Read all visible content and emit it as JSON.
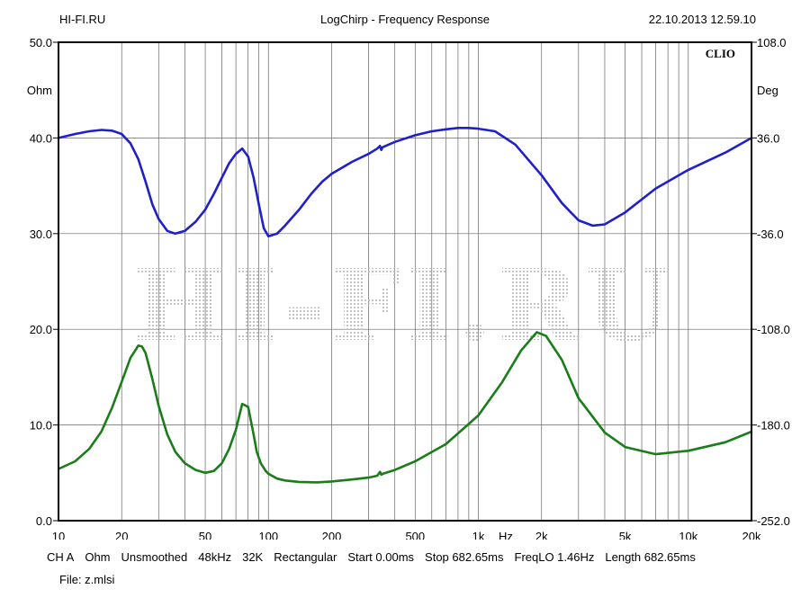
{
  "header": {
    "left": "HI-FI.RU",
    "center": "LogChirp - Frequency Response",
    "right": "22.10.2013 12.59.10"
  },
  "watermark": "HI-FI.RU",
  "brand": "CLIO",
  "footer": {
    "settings": [
      {
        "id": "channel",
        "text": "CH A"
      },
      {
        "id": "unit",
        "text": "Ohm"
      },
      {
        "id": "smoothing",
        "text": "Unsmoothed"
      },
      {
        "id": "sample-rate",
        "text": "48kHz"
      },
      {
        "id": "size",
        "text": "32K"
      },
      {
        "id": "window",
        "text": "Rectangular"
      },
      {
        "id": "start",
        "text": "Start 0.00ms"
      },
      {
        "id": "stop",
        "text": "Stop 682.65ms"
      },
      {
        "id": "freq-lo",
        "text": "FreqLO 1.46Hz"
      },
      {
        "id": "length",
        "text": "Length 682.65ms"
      }
    ],
    "file": "File: z.mlsi"
  },
  "chart_data": {
    "type": "line",
    "title": "LogChirp - Frequency Response",
    "xlabel": "Hz",
    "x_scale": "log",
    "xlim": [
      10,
      20000
    ],
    "x_tick_values": [
      10,
      20,
      50,
      100,
      200,
      500,
      1000,
      2000,
      5000,
      10000,
      20000
    ],
    "x_tick_labels": [
      "10",
      "20",
      "50",
      "100",
      "200",
      "500",
      "1k",
      "2k",
      "5k",
      "10k",
      "20k"
    ],
    "ylabel_left": "Ohm",
    "ylim_left": [
      0,
      50
    ],
    "yticks_left": [
      "0.0",
      "10.0",
      "20.0",
      "30.0",
      "40.0",
      "50.0"
    ],
    "ylabel_right": "Deg",
    "ylim_right": [
      -252,
      108
    ],
    "yticks_right": [
      "-252.0",
      "-180.0",
      "-108.0",
      "-36.0",
      "36.0",
      "108.0"
    ],
    "grid": true,
    "series": [
      {
        "axis": "right",
        "color": "#1f1fcc",
        "x": [
          10,
          12,
          14,
          16,
          18,
          20,
          22,
          24,
          26,
          28,
          30,
          33,
          36,
          40,
          45,
          50,
          55,
          60,
          65,
          70,
          75,
          80,
          85,
          90,
          95,
          100,
          110,
          120,
          140,
          160,
          180,
          200,
          250,
          300,
          330,
          340,
          345,
          350,
          400,
          500,
          600,
          700,
          800,
          900,
          1000,
          1200,
          1500,
          2000,
          2500,
          3000,
          3500,
          4000,
          5000,
          7000,
          10000,
          15000,
          20000
        ],
        "y": [
          36,
          39,
          41,
          42,
          41.5,
          39,
          32,
          20,
          3,
          -14,
          -25,
          -34,
          -36,
          -34,
          -27,
          -18,
          -6,
          6,
          17,
          24,
          28,
          22,
          6,
          -14,
          -32,
          -38,
          -36,
          -30,
          -18,
          -6,
          3,
          9,
          18,
          24,
          28,
          30,
          27,
          29,
          33,
          38,
          41,
          42.5,
          43.5,
          43.5,
          43,
          41,
          31,
          8,
          -13,
          -26,
          -30,
          -29,
          -20,
          -2,
          12,
          25,
          36
        ]
      },
      {
        "axis": "left",
        "color": "#1a7d1a",
        "x": [
          10,
          12,
          14,
          16,
          18,
          20,
          22,
          24,
          25,
          26,
          28,
          30,
          33,
          36,
          40,
          45,
          50,
          55,
          60,
          65,
          70,
          75,
          80,
          85,
          88,
          92,
          97,
          100,
          110,
          120,
          140,
          170,
          200,
          250,
          300,
          330,
          340,
          345,
          350,
          400,
          500,
          700,
          1000,
          1300,
          1600,
          1900,
          2100,
          2500,
          3000,
          4000,
          5000,
          7000,
          10000,
          15000,
          20000
        ],
        "y": [
          5.4,
          6.2,
          7.5,
          9.3,
          11.8,
          14.5,
          17.0,
          18.3,
          18.2,
          17.5,
          14.8,
          12.0,
          9.0,
          7.2,
          6.0,
          5.3,
          5.0,
          5.2,
          6.0,
          7.5,
          9.5,
          12.2,
          11.9,
          9.0,
          7.2,
          6.0,
          5.2,
          4.9,
          4.4,
          4.2,
          4.05,
          4.0,
          4.1,
          4.3,
          4.5,
          4.7,
          5.1,
          4.8,
          4.9,
          5.3,
          6.2,
          8.0,
          11.0,
          14.5,
          17.8,
          19.7,
          19.3,
          16.8,
          12.8,
          9.2,
          7.7,
          6.95,
          7.3,
          8.2,
          9.3
        ]
      }
    ]
  }
}
